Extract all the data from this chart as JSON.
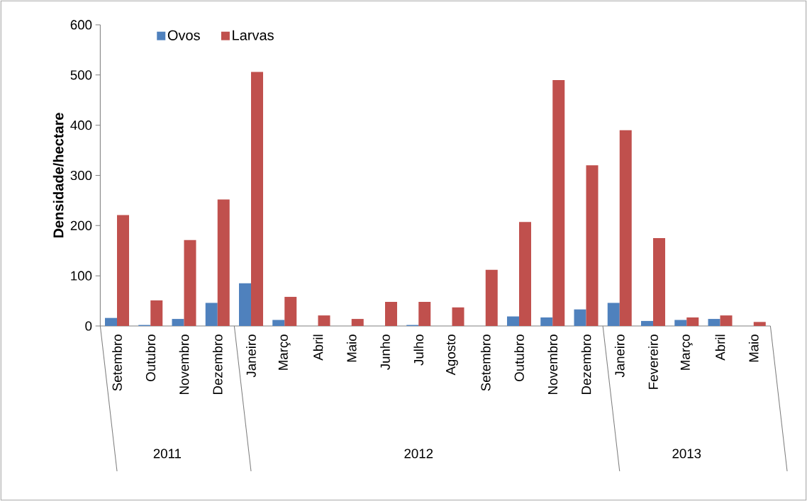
{
  "chart_data": {
    "type": "bar",
    "ylabel": "Densidade/hectare",
    "categories": [
      "Setembro",
      "Outubro",
      "Novembro",
      "Dezembro",
      "Janeiro",
      "Março",
      "Abril",
      "Maio",
      "Junho",
      "Julho",
      "Agosto",
      "Setembro",
      "Outubro",
      "Novembro",
      "Dezembro",
      "Janeiro",
      "Fevereiro",
      "Março",
      "Abril",
      "Maio"
    ],
    "series": [
      {
        "name": "Ovos",
        "color": "#4f81bd",
        "values": [
          16,
          2,
          14,
          46,
          85,
          12,
          0,
          0,
          0,
          2,
          0,
          0,
          19,
          17,
          33,
          46,
          10,
          12,
          14,
          0
        ]
      },
      {
        "name": "Larvas",
        "color": "#c0504d",
        "values": [
          221,
          51,
          171,
          252,
          506,
          58,
          21,
          14,
          48,
          48,
          37,
          112,
          207,
          490,
          320,
          390,
          175,
          17,
          21,
          8
        ]
      }
    ],
    "annotations": [
      "2011",
      "2012",
      "2013"
    ],
    "ylim": [
      0,
      600
    ],
    "yticks": [
      0,
      100,
      200,
      300,
      400,
      500,
      600
    ],
    "grid": false,
    "legend": "top left"
  }
}
